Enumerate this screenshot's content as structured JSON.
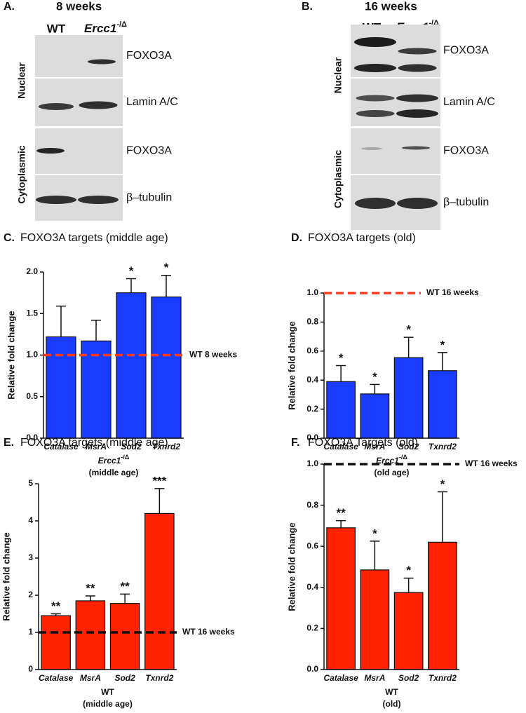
{
  "blots": [
    {
      "panel": "A.",
      "title": "8 weeks",
      "lanes": [
        "WT",
        "Ercc1"
      ],
      "lane_sup": "-/Δ",
      "fractions": [
        "Nuclear",
        "Cytoplasmic"
      ],
      "rows": [
        "FOXO3A",
        "Lamin A/C",
        "FOXO3A",
        "β–tubulin"
      ]
    },
    {
      "panel": "B.",
      "title": "16 weeks",
      "lanes": [
        "WT",
        "Ercc1"
      ],
      "lane_sup": "-/Δ",
      "fractions": [
        "Nuclear",
        "Cytoplasmic"
      ],
      "rows": [
        "FOXO3A",
        "Lamin A/C",
        "FOXO3A",
        "β–tubulin"
      ]
    }
  ],
  "chart_data": [
    {
      "type": "bar",
      "panel": "C.",
      "title": "FOXO3A targets (middle age)",
      "ylabel": "Relative fold change",
      "xlabel": "Ercc1",
      "xlabel_sup": "-/Δ",
      "xlabel_sub": "(middle age)",
      "categories": [
        "Catalase",
        "MsrA",
        "Sod2",
        "Txnrd2"
      ],
      "values": [
        1.22,
        1.17,
        1.75,
        1.7
      ],
      "errors": [
        0.37,
        0.25,
        0.17,
        0.26
      ],
      "significance": [
        null,
        null,
        "*",
        "*"
      ],
      "color": "#1a3cff",
      "reference": {
        "value": 1,
        "label": "WT 8 weeks",
        "color": "#ff3b1f"
      },
      "ylim": [
        0,
        2
      ],
      "yticks": [
        {
          "value": 0,
          "label": "0.0"
        },
        0.5,
        {
          "value": 1,
          "label": "1.0"
        },
        1.5,
        {
          "value": 2,
          "label": "2.0"
        }
      ]
    },
    {
      "type": "bar",
      "panel": "D.",
      "title": "FOXO3A targets (old)",
      "ylabel": "Relative fold change",
      "xlabel": "Ercc1",
      "xlabel_sup": "-/Δ",
      "xlabel_sub": "(old age)",
      "categories": [
        "Catalase",
        "MsrA",
        "Sod2",
        "Txnrd2"
      ],
      "values": [
        0.39,
        0.305,
        0.555,
        0.465
      ],
      "errors": [
        0.11,
        0.065,
        0.14,
        0.125
      ],
      "significance": [
        "*",
        "*",
        "*",
        "*"
      ],
      "color": "#1a3cff",
      "reference": {
        "value": 1,
        "label": "WT 16 weeks",
        "color": "#ff3b1f"
      },
      "ylim": [
        0,
        1
      ],
      "yticks": [
        {
          "value": 0,
          "label": "0.0"
        },
        0.2,
        0.4,
        0.6,
        0.8,
        {
          "value": 1,
          "label": "1.0"
        }
      ]
    },
    {
      "type": "bar",
      "panel": "E.",
      "title": "FOXO3A targets (middle age)",
      "ylabel": "Relative fold change",
      "xlabel": "WT",
      "xlabel_sub": "(middle age)",
      "categories": [
        "Catalase",
        "MsrA",
        "Sod2",
        "Txnrd2"
      ],
      "values": [
        1.45,
        1.85,
        1.78,
        4.2
      ],
      "errors": [
        0.05,
        0.13,
        0.25,
        0.67
      ],
      "significance": [
        "**",
        "**",
        "**",
        "***"
      ],
      "color": "#ff2200",
      "reference": {
        "value": 1,
        "label": "WT 16 weeks",
        "color": "#111111"
      },
      "ylim": [
        0,
        5
      ],
      "yticks": [
        0,
        1,
        2,
        3,
        4,
        5
      ]
    },
    {
      "type": "bar",
      "panel": "F.",
      "title": "FOXO3A Targets (old)",
      "ylabel": "Relative fold change",
      "xlabel": "WT",
      "xlabel_sub": "(old)",
      "categories": [
        "Catalase",
        "MsrA",
        "Sod2",
        "Txnrd2"
      ],
      "values": [
        0.69,
        0.485,
        0.375,
        0.62
      ],
      "errors": [
        0.035,
        0.14,
        0.07,
        0.245
      ],
      "significance": [
        "**",
        "*",
        "*",
        "*"
      ],
      "color": "#ff2200",
      "reference": {
        "value": 1,
        "label": "WT 16 weeks",
        "color": "#111111"
      },
      "ylim": [
        0,
        1
      ],
      "yticks": [
        {
          "value": 0,
          "label": "0.0"
        },
        0.2,
        0.4,
        0.6,
        0.8,
        {
          "value": 1,
          "label": "1.0"
        }
      ]
    }
  ]
}
